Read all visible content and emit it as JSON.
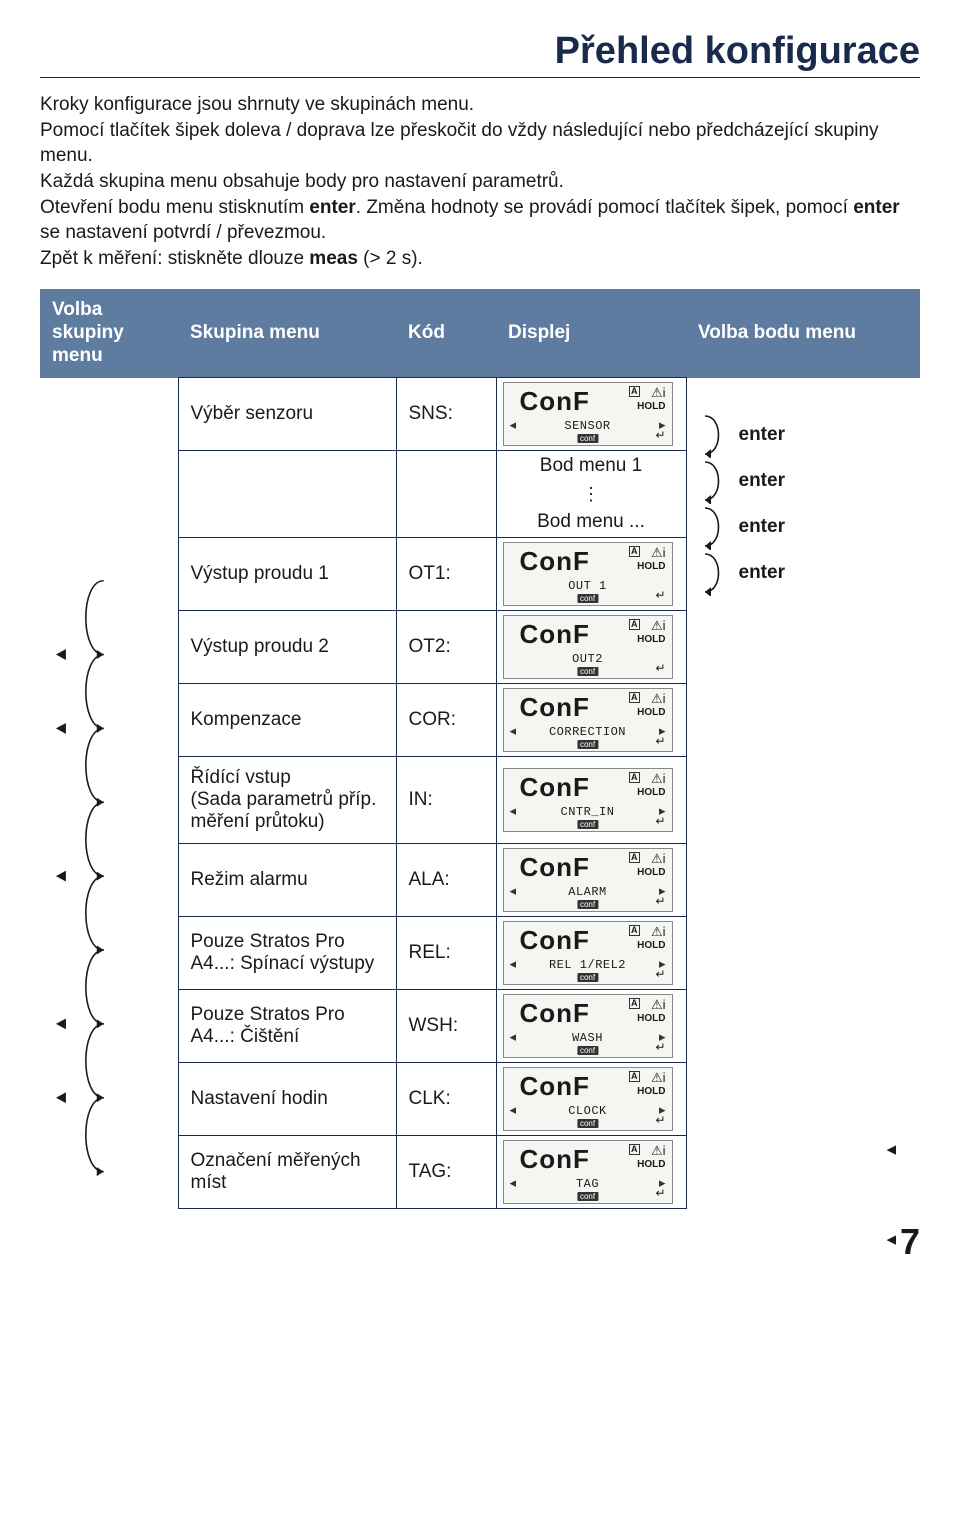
{
  "page_title": "Přehled konfigurace",
  "intro_html": "Kroky konfigurace jsou shrnuty ve skupinách menu.<br>Pomocí tlačítek šipek doleva / doprava lze přeskočit do vždy následující nebo předcházející skupiny menu.<br>Každá skupina menu obsahuje body pro nastavení parametrů.<br>Otevření bodu menu stisknutím <b>enter</b>. Změna hodnoty se provádí pomocí tlačítek šipek, pomocí <b>enter</b> se nastavení potvrdí / převezmou.<br>Zpět k měření: stiskněte dlouze <b>meas</b> (&gt; 2 s).",
  "headers": {
    "col1": "Volba skupiny menu",
    "col2": "Skupina menu",
    "col3": "Kód",
    "col4": "Displej",
    "col5": "Volba bodu menu"
  },
  "lcd_common": {
    "big": "ConF",
    "badge_a": "A",
    "hold": "HOLD",
    "info": "i",
    "conf": "conf",
    "enter": "↵"
  },
  "rows": [
    {
      "group": "Výběr senzoru",
      "code": "SNS:",
      "sub": "SENSOR",
      "nav_curve": false
    },
    {
      "inner": true,
      "label": "Bod menu 1"
    },
    {
      "inner": true,
      "label": "⋮",
      "dots": true
    },
    {
      "inner": true,
      "label": "Bod menu ..."
    },
    {
      "group": "Výstup proudu 1",
      "code": "OT1:",
      "sub": "OUT 1",
      "nav_curve": false,
      "no_bottom_arrows": true
    },
    {
      "group": "Výstup proudu 2",
      "code": "OT2:",
      "sub": "OUT2",
      "nav_curve": true,
      "no_bottom_arrows": true
    },
    {
      "group": "Kompenzace",
      "code": "COR:",
      "sub": "CORRECTION",
      "nav_curve": true
    },
    {
      "group": "Řídící vstup\n(Sada parametrů příp. měření průtoku)",
      "code": "IN:",
      "sub": "CNTR_IN",
      "nav_curve": true,
      "no_nav_tri": true
    },
    {
      "group": "Režim alarmu",
      "code": "ALA:",
      "sub": "ALARM",
      "nav_curve": true
    },
    {
      "group": "Pouze Stratos Pro A4...: Spínací výstupy",
      "code": "REL:",
      "sub": "REL 1/REL2",
      "nav_curve": true,
      "no_nav_tri": true
    },
    {
      "group": "Pouze Stratos Pro A4...: Čištění",
      "code": "WSH:",
      "sub": "WASH",
      "nav_curve": true,
      "back_arrow": true
    },
    {
      "group": "Nastavení hodin",
      "code": "CLK:",
      "sub": "CLOCK",
      "nav_curve": true,
      "back_arrow": true
    },
    {
      "group": "Označení měřených míst",
      "code": "TAG:",
      "sub": "TAG",
      "nav_curve": true,
      "no_nav_tri": true
    }
  ],
  "enter_label": "enter",
  "page_number": "7"
}
